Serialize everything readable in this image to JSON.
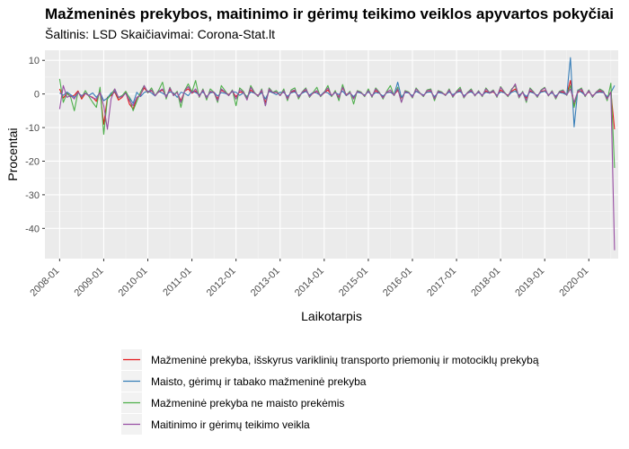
{
  "chart_data": {
    "type": "line",
    "title": "Mažmeninės prekybos, maitinimo ir gėrimų teikimo veiklos apyvartos pokyčiai",
    "subtitle": "Šaltinis: LSD Skaičiavimai: Corona-Stat.lt",
    "xlabel": "Laikotarpis",
    "ylabel": "Procentai",
    "x_start": "2008-01",
    "x_end": "2020-04",
    "xlim": [
      "2007-09",
      "2020-09"
    ],
    "ylim": [
      -49,
      13
    ],
    "x_ticks": [
      "2008-01",
      "2009-01",
      "2010-01",
      "2011-01",
      "2012-01",
      "2013-01",
      "2014-01",
      "2015-01",
      "2016-01",
      "2017-01",
      "2018-01",
      "2019-01",
      "2020-01"
    ],
    "y_ticks": [
      -40,
      -30,
      -20,
      -10,
      0,
      10
    ],
    "y_tick_labels": [
      "-40",
      "-30",
      "-20",
      "-10",
      "0",
      "10"
    ],
    "grid": true,
    "background": "#ebebeb",
    "legend_position": "bottom",
    "series": [
      {
        "name": "Mažmeninė prekyba, išskyrus variklinių transporto priemonių ir motociklų prekybą",
        "color": "#e41a1c",
        "values": [
          1.5,
          -1.2,
          0.3,
          -0.8,
          -0.4,
          0.9,
          -1.5,
          0.2,
          -0.6,
          -1.0,
          -2.2,
          0.8,
          -9.0,
          -1.0,
          -0.5,
          0.6,
          -1.8,
          -1.0,
          0.4,
          -3.0,
          -4.5,
          -1.2,
          -0.2,
          1.8,
          0.4,
          1.0,
          -0.4,
          0.6,
          1.2,
          -0.8,
          1.3,
          -0.2,
          0.4,
          -2.0,
          0.8,
          1.5,
          0.2,
          0.9,
          -0.5,
          1.0,
          -1.0,
          0.7,
          0.3,
          -1.4,
          1.1,
          0.5,
          -0.2,
          0.9,
          -0.8,
          0.6,
          0.4,
          -1.0,
          1.2,
          0.2,
          -0.4,
          0.8,
          -2.5,
          1.0,
          0.3,
          0.5,
          -0.3,
          0.7,
          -1.2,
          0.6,
          0.9,
          -0.8,
          0.4,
          1.0,
          -0.5,
          0.2,
          0.8,
          -0.6,
          0.3,
          1.2,
          -0.4,
          0.5,
          -0.9,
          1.8,
          -0.2,
          0.4,
          -1.0,
          0.6,
          0.3,
          -0.4,
          0.7,
          -0.5,
          1.0,
          0.2,
          -0.8,
          0.4,
          0.6,
          -0.3,
          1.1,
          -1.2,
          0.5,
          0.3,
          -0.6,
          0.9,
          0.2,
          -0.4,
          0.6,
          0.8,
          -1.0,
          0.5,
          0.3,
          -0.2,
          0.7,
          -0.5,
          0.4,
          1.0,
          -0.6,
          0.2,
          0.8,
          -0.3,
          0.5,
          -0.4,
          0.9,
          0.2,
          0.6,
          -0.5,
          1.2,
          0.3,
          -0.4,
          0.8,
          1.5,
          -0.6,
          0.4,
          -1.2,
          0.9,
          0.3,
          -0.5,
          0.7,
          1.0,
          -0.3,
          0.5,
          -0.8,
          0.4,
          0.6,
          -0.2,
          4.0,
          -3.5,
          0.5,
          1.0,
          -0.4,
          0.6,
          -0.5,
          0.3,
          0.8,
          0.4,
          -1.0,
          0.6,
          -10.5
        ]
      },
      {
        "name": "Maisto, gėrimų ir tabako mažmeninė prekyba",
        "color": "#377eb8",
        "values": [
          0.3,
          -0.4,
          0.6,
          -0.2,
          -1.0,
          0.4,
          -0.5,
          0.2,
          -0.4,
          0.3,
          -1.0,
          0.5,
          -2.0,
          -1.2,
          0.3,
          0.8,
          -1.0,
          -0.5,
          0.2,
          -1.0,
          -2.8,
          0.5,
          -0.8,
          0.4,
          0.9,
          0.3,
          -0.6,
          0.8,
          0.2,
          -0.4,
          0.6,
          0.3,
          -1.0,
          0.5,
          0.2,
          -0.5,
          0.9,
          0.4,
          -0.2,
          0.6,
          -0.8,
          0.3,
          0.5,
          -0.6,
          0.4,
          0.2,
          -0.3,
          0.7,
          0.5,
          -0.4,
          0.3,
          -0.8,
          0.6,
          0.2,
          -0.5,
          0.4,
          -1.5,
          0.8,
          0.3,
          -0.2,
          0.5,
          0.4,
          -0.7,
          0.3,
          0.6,
          -0.5,
          0.2,
          0.8,
          -0.3,
          0.5,
          0.2,
          -0.4,
          0.6,
          0.3,
          -0.6,
          0.4,
          -0.2,
          0.9,
          -0.5,
          0.3,
          -0.8,
          0.5,
          0.2,
          -0.3,
          0.6,
          -0.4,
          0.4,
          0.2,
          -0.6,
          0.3,
          0.5,
          -0.2,
          3.5,
          -1.0,
          0.4,
          0.3,
          -0.5,
          0.8,
          0.2,
          -0.3,
          0.5,
          0.6,
          -0.8,
          0.4,
          0.2,
          -0.3,
          0.6,
          -0.2,
          0.4,
          0.7,
          -0.5,
          0.3,
          0.6,
          -0.2,
          0.4,
          -0.3,
          0.5,
          0.2,
          0.8,
          -0.4,
          0.6,
          0.3,
          -0.6,
          0.5,
          0.9,
          -0.3,
          0.4,
          -0.8,
          0.6,
          0.2,
          -0.4,
          0.5,
          0.8,
          -0.2,
          0.3,
          -0.6,
          0.4,
          0.2,
          -0.3,
          10.8,
          -9.8,
          1.2,
          0.5,
          -0.4,
          0.8,
          -0.6,
          0.3,
          0.5,
          0.4,
          -0.8,
          0.4,
          2.5
        ]
      },
      {
        "name": "Mažmeninė prekyba ne maisto prekėmis",
        "color": "#4daf4a",
        "values": [
          4.5,
          -2.5,
          0.2,
          -1.0,
          -5.0,
          0.6,
          -1.0,
          1.0,
          -0.8,
          -2.5,
          -4.0,
          2.0,
          -12.0,
          -1.5,
          -0.2,
          1.5,
          -1.2,
          -0.5,
          0.8,
          -1.2,
          -5.0,
          -2.2,
          0.5,
          2.5,
          0.3,
          1.8,
          -0.5,
          1.2,
          3.5,
          -1.5,
          2.0,
          -0.5,
          0.8,
          -4.0,
          1.0,
          3.0,
          0.6,
          4.0,
          -1.0,
          1.5,
          -1.8,
          1.5,
          0.5,
          -2.5,
          2.5,
          1.0,
          -0.5,
          1.2,
          -3.5,
          1.8,
          0.8,
          -1.5,
          2.5,
          0.5,
          -0.8,
          1.5,
          -3.5,
          1.8,
          0.5,
          1.0,
          -0.5,
          1.5,
          -2.0,
          1.2,
          1.8,
          -1.5,
          0.6,
          1.8,
          -1.0,
          0.5,
          2.0,
          -0.8,
          0.5,
          2.5,
          -0.8,
          1.0,
          -2.0,
          2.8,
          -0.5,
          0.8,
          -3.0,
          1.0,
          0.6,
          -0.8,
          1.5,
          -1.0,
          1.8,
          0.5,
          -1.5,
          0.8,
          2.5,
          -0.5,
          2.0,
          -2.5,
          1.0,
          0.6,
          -1.2,
          1.8,
          0.4,
          -0.8,
          1.2,
          1.5,
          -2.0,
          1.0,
          0.6,
          -0.5,
          1.5,
          -1.0,
          0.8,
          2.0,
          -1.2,
          0.5,
          1.5,
          -0.6,
          1.0,
          -0.8,
          1.8,
          0.4,
          1.2,
          -1.0,
          2.2,
          0.6,
          -0.8,
          1.5,
          2.5,
          -1.2,
          0.8,
          -2.5,
          1.8,
          0.6,
          -1.0,
          1.2,
          2.0,
          -0.6,
          1.0,
          -1.5,
          0.8,
          1.2,
          -0.4,
          2.5,
          -4.0,
          1.0,
          1.8,
          -0.8,
          1.2,
          -1.0,
          0.6,
          1.5,
          0.8,
          -2.0,
          3.2,
          -22.0
        ]
      },
      {
        "name": "Maitinimo ir gėrimų teikimo veikla",
        "color": "#984ea3",
        "values": [
          -4.5,
          2.5,
          -1.0,
          -0.5,
          -1.5,
          0.5,
          -0.8,
          0.3,
          -0.5,
          -1.2,
          -1.5,
          0.5,
          -3.5,
          -10.5,
          -1.5,
          1.5,
          -1.0,
          -0.8,
          0.2,
          -2.0,
          -3.5,
          -1.0,
          -0.5,
          2.5,
          0.5,
          1.2,
          -0.5,
          0.8,
          1.5,
          -1.0,
          1.8,
          -0.5,
          0.5,
          -2.5,
          0.8,
          2.2,
          0.3,
          1.5,
          -0.8,
          1.2,
          -1.2,
          0.8,
          0.5,
          -2.0,
          1.5,
          0.6,
          -0.5,
          1.0,
          -1.5,
          1.2,
          0.5,
          -1.8,
          2.0,
          0.3,
          -0.6,
          1.2,
          -3.5,
          1.5,
          0.4,
          0.6,
          -0.5,
          1.0,
          -1.5,
          0.8,
          1.2,
          -1.0,
          0.5,
          1.5,
          -0.8,
          0.3,
          1.0,
          -0.6,
          0.4,
          1.8,
          -0.5,
          0.6,
          -1.2,
          2.0,
          -0.4,
          0.5,
          -1.5,
          0.8,
          0.4,
          -0.6,
          1.0,
          -0.8,
          1.5,
          0.3,
          -1.2,
          0.6,
          1.2,
          -0.4,
          1.5,
          -2.5,
          0.8,
          0.4,
          -1.0,
          1.5,
          0.3,
          -0.6,
          1.0,
          1.2,
          -1.5,
          0.8,
          0.4,
          -0.4,
          1.2,
          -0.8,
          0.6,
          1.5,
          -1.0,
          0.4,
          1.2,
          -0.5,
          0.8,
          -0.6,
          1.5,
          0.3,
          1.0,
          -0.8,
          2.0,
          0.4,
          -0.6,
          1.2,
          3.0,
          -1.0,
          0.6,
          -2.0,
          1.5,
          0.4,
          -0.8,
          1.0,
          1.8,
          -0.5,
          0.8,
          -1.2,
          0.6,
          1.0,
          -0.3,
          1.5,
          -2.5,
          0.8,
          1.5,
          -0.6,
          1.0,
          -0.8,
          0.5,
          1.2,
          0.6,
          -1.5,
          0.5,
          -46.5
        ]
      }
    ]
  }
}
